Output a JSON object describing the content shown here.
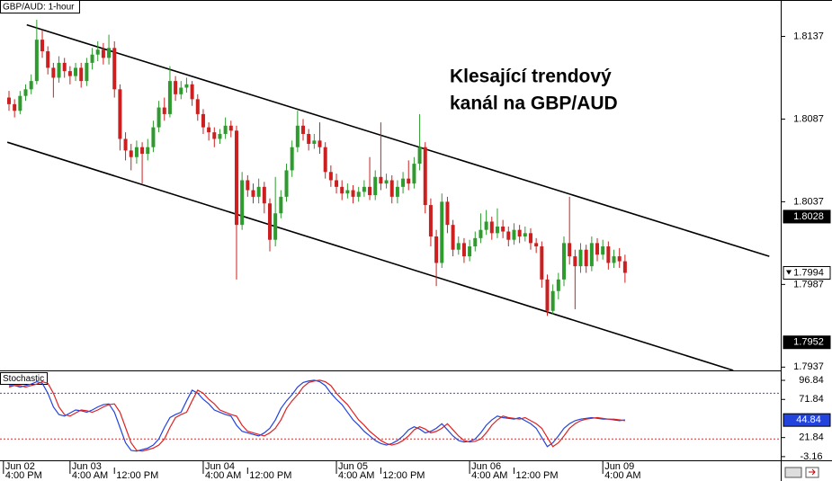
{
  "chart_data": {
    "type": "candlestick",
    "title": "GBP/AUD: 1-hour",
    "annotation": [
      "Klesající trendový",
      "kanál na GBP/AUD"
    ],
    "up_color": "#2e9b2e",
    "down_color": "#cc2020",
    "open": [
      1.81,
      1.8096,
      1.8092,
      1.8101,
      1.8105,
      1.811,
      1.8135,
      1.8128,
      1.8118,
      1.8112,
      1.8121,
      1.8116,
      1.8113,
      1.8118,
      1.811,
      1.8121,
      1.8126,
      1.8129,
      1.8124,
      1.813,
      1.8105,
      1.8075,
      1.8068,
      1.8064,
      1.807,
      1.8066,
      1.807,
      1.8082,
      1.8094,
      1.809,
      1.811,
      1.8102,
      1.8106,
      1.8108,
      1.8099,
      1.809,
      1.8082,
      1.8079,
      1.8075,
      1.8078,
      1.8083,
      1.808,
      1.8023,
      1.805,
      1.8044,
      1.804,
      1.8046,
      1.8036,
      1.8014,
      1.803,
      1.804,
      1.8056,
      1.807,
      1.8083,
      1.8078,
      1.8072,
      1.8074,
      1.807,
      1.8055,
      1.805,
      1.8046,
      1.8042,
      1.8044,
      1.804,
      1.8043,
      1.8046,
      1.8041,
      1.8052,
      1.8048,
      1.805,
      1.804,
      1.8046,
      1.8051,
      1.8048,
      1.806,
      1.807,
      1.8035,
      1.8016,
      1.8,
      1.8037,
      1.8023,
      1.8008,
      1.8012,
      1.8004,
      1.801,
      1.8015,
      1.802,
      1.8025,
      1.8018,
      1.8022,
      1.8019,
      1.8014,
      1.802,
      1.8016,
      1.8018,
      1.8012,
      1.801,
      1.799,
      1.7971,
      1.7983,
      1.799,
      1.8012,
      1.8004,
      1.7998,
      1.8008,
      1.7998,
      1.8012,
      1.8005,
      1.801,
      1.8,
      1.8004,
      1.8001
    ],
    "high": [
      1.8104,
      1.8099,
      1.8104,
      1.8108,
      1.8114,
      1.8147,
      1.8141,
      1.8131,
      1.8121,
      1.8125,
      1.8124,
      1.8119,
      1.8121,
      1.8121,
      1.8124,
      1.813,
      1.8134,
      1.8133,
      1.8138,
      1.8134,
      1.8108,
      1.8079,
      1.8072,
      1.8074,
      1.8073,
      1.8075,
      1.8086,
      1.8098,
      1.81,
      1.8119,
      1.8113,
      1.811,
      1.8112,
      1.811,
      1.8102,
      1.8093,
      1.8085,
      1.8082,
      1.8081,
      1.8088,
      1.8086,
      1.8083,
      1.8055,
      1.8053,
      1.8048,
      1.8051,
      1.8049,
      1.8039,
      1.8052,
      1.8044,
      1.806,
      1.8074,
      1.8092,
      1.8087,
      1.8081,
      1.8078,
      1.8085,
      1.8073,
      1.8059,
      1.8054,
      1.805,
      1.8048,
      1.8047,
      1.8046,
      1.805,
      1.8064,
      1.8056,
      1.8085,
      1.8054,
      1.8053,
      1.805,
      1.8055,
      1.8062,
      1.8064,
      1.809,
      1.8073,
      1.8039,
      1.802,
      1.8042,
      1.804,
      1.8026,
      1.8016,
      1.8015,
      1.8014,
      1.8019,
      1.803,
      1.8032,
      1.8028,
      1.8033,
      1.8026,
      1.8022,
      1.8024,
      1.8023,
      1.8022,
      1.8021,
      1.8015,
      1.8013,
      1.7993,
      1.7987,
      1.7994,
      1.8016,
      1.804,
      1.8008,
      1.8012,
      1.8011,
      1.8016,
      1.8015,
      1.8014,
      1.8013,
      1.8008,
      1.8009,
      1.8005
    ],
    "low": [
      1.8092,
      1.8088,
      1.809,
      1.8098,
      1.8102,
      1.8108,
      1.8124,
      1.8114,
      1.81,
      1.8109,
      1.8112,
      1.8108,
      1.811,
      1.8106,
      1.8107,
      1.8117,
      1.8122,
      1.812,
      1.812,
      1.81,
      1.8068,
      1.8062,
      1.8056,
      1.806,
      1.8048,
      1.8062,
      1.8067,
      1.8079,
      1.8086,
      1.8088,
      1.8098,
      1.8099,
      1.8103,
      1.8095,
      1.8086,
      1.8078,
      1.8074,
      1.807,
      1.8072,
      1.8075,
      1.8076,
      1.799,
      1.802,
      1.804,
      1.8036,
      1.8036,
      1.803,
      1.8007,
      1.801,
      1.8027,
      1.8037,
      1.8052,
      1.8067,
      1.8074,
      1.8068,
      1.8069,
      1.8066,
      1.8051,
      1.8046,
      1.8042,
      1.8038,
      1.8039,
      1.8036,
      1.8037,
      1.804,
      1.8038,
      1.8038,
      1.8044,
      1.8045,
      1.8036,
      1.8036,
      1.8042,
      1.8044,
      1.8045,
      1.8056,
      1.803,
      1.801,
      1.7986,
      1.7997,
      1.8018,
      1.8004,
      1.8005,
      1.8,
      1.8001,
      1.8007,
      1.8012,
      1.8017,
      1.8014,
      1.8015,
      1.8015,
      1.801,
      1.8011,
      1.8012,
      1.8013,
      1.8008,
      1.8006,
      1.7985,
      1.7968,
      1.7969,
      1.7978,
      1.7986,
      1.7999,
      1.7972,
      1.7994,
      1.7994,
      1.7995,
      1.8001,
      1.8002,
      1.7996,
      1.7997,
      1.7997,
      1.7988
    ],
    "close": [
      1.8096,
      1.8092,
      1.8101,
      1.8105,
      1.811,
      1.8135,
      1.8128,
      1.8118,
      1.8112,
      1.8121,
      1.8116,
      1.8113,
      1.8118,
      1.811,
      1.8121,
      1.8126,
      1.8129,
      1.8124,
      1.813,
      1.8105,
      1.8075,
      1.8068,
      1.8064,
      1.807,
      1.8066,
      1.807,
      1.8082,
      1.8094,
      1.809,
      1.811,
      1.8102,
      1.8106,
      1.8108,
      1.8099,
      1.809,
      1.8082,
      1.8079,
      1.8075,
      1.8078,
      1.8083,
      1.808,
      1.8023,
      1.805,
      1.8044,
      1.804,
      1.8046,
      1.8036,
      1.8014,
      1.803,
      1.804,
      1.8056,
      1.807,
      1.8083,
      1.8078,
      1.8072,
      1.8074,
      1.807,
      1.8055,
      1.805,
      1.8046,
      1.8042,
      1.8044,
      1.804,
      1.8043,
      1.8046,
      1.8041,
      1.8052,
      1.8048,
      1.805,
      1.804,
      1.8046,
      1.8051,
      1.8048,
      1.806,
      1.807,
      1.8035,
      1.8016,
      1.8,
      1.8037,
      1.8023,
      1.8008,
      1.8012,
      1.8004,
      1.801,
      1.8015,
      1.802,
      1.8025,
      1.8018,
      1.8022,
      1.8019,
      1.8014,
      1.802,
      1.8016,
      1.8018,
      1.8012,
      1.801,
      1.799,
      1.7971,
      1.7983,
      1.799,
      1.8012,
      1.8004,
      1.7998,
      1.8008,
      1.7998,
      1.8012,
      1.8005,
      1.801,
      1.8,
      1.8004,
      1.8001,
      1.7994
    ],
    "ylim": [
      1.7935,
      1.8159
    ],
    "yticks": [
      1.8137,
      1.8087,
      1.8037,
      1.7987,
      1.7937
    ],
    "price_markers": [
      1.8028,
      1.7952
    ],
    "last_price": 1.7994,
    "trendlines": [
      {
        "x": [
          3.2,
          137
        ],
        "y": [
          1.8144,
          1.8004
        ]
      },
      {
        "x": [
          -0.3,
          130.5
        ],
        "y": [
          1.8073,
          1.7935
        ]
      }
    ],
    "xticks_date": [
      {
        "value": -1,
        "label": "Jun 02"
      },
      {
        "value": 11,
        "label": "Jun 03"
      },
      {
        "value": 35,
        "label": "Jun 04"
      },
      {
        "value": 59,
        "label": "Jun 05"
      },
      {
        "value": 83,
        "label": "Jun 06"
      },
      {
        "value": 107,
        "label": "Jun 09"
      }
    ],
    "xticks_time": [
      {
        "value": -1,
        "label": "4:00 PM"
      },
      {
        "value": 11,
        "label": "4:00 AM"
      },
      {
        "value": 19,
        "label": "12:00 PM"
      },
      {
        "value": 35,
        "label": "4:00 AM"
      },
      {
        "value": 43,
        "label": "12:00 PM"
      },
      {
        "value": 59,
        "label": "4:00 AM"
      },
      {
        "value": 67,
        "label": "12:00 PM"
      },
      {
        "value": 83,
        "label": "4:00 AM"
      },
      {
        "value": 91,
        "label": "12:00 PM"
      },
      {
        "value": 107,
        "label": "4:00 AM"
      }
    ],
    "stochastic": {
      "title": "Stochastic",
      "ylim": [
        -8,
        107.5
      ],
      "yticks": [
        96.84,
        71.84,
        21.84,
        -3.16
      ],
      "levels": [
        {
          "value": 80,
          "color": "#3050d0"
        },
        {
          "value": 20,
          "color": "#d03030"
        }
      ],
      "last_value": 44.84,
      "series": [
        {
          "color": "#2244dd",
          "values": [
            90,
            90,
            88,
            90,
            92,
            95,
            93,
            80,
            62,
            52,
            50,
            54,
            58,
            57,
            55,
            58,
            62,
            65,
            66,
            55,
            35,
            15,
            5,
            4,
            6,
            8,
            12,
            20,
            35,
            48,
            52,
            55,
            70,
            84,
            80,
            72,
            66,
            58,
            55,
            52,
            50,
            38,
            30,
            28,
            26,
            24,
            28,
            34,
            45,
            60,
            70,
            78,
            88,
            94,
            96,
            97,
            95,
            90,
            80,
            72,
            65,
            55,
            45,
            38,
            30,
            24,
            18,
            14,
            12,
            14,
            18,
            24,
            32,
            36,
            33,
            28,
            30,
            34,
            40,
            32,
            24,
            18,
            16,
            17,
            20,
            28,
            38,
            45,
            50,
            48,
            47,
            46,
            48,
            44,
            40,
            34,
            22,
            10,
            15,
            24,
            34,
            40,
            44,
            46,
            47,
            48,
            47,
            46,
            46,
            45,
            44,
            45
          ]
        },
        {
          "color": "#dd2222",
          "values": [
            88,
            90,
            90,
            88,
            90,
            92,
            95,
            93,
            80,
            62,
            52,
            50,
            54,
            58,
            57,
            55,
            58,
            62,
            65,
            66,
            55,
            35,
            15,
            5,
            4,
            6,
            8,
            12,
            20,
            35,
            48,
            52,
            55,
            70,
            84,
            80,
            72,
            66,
            58,
            55,
            52,
            50,
            38,
            30,
            28,
            26,
            24,
            28,
            34,
            45,
            60,
            70,
            78,
            88,
            94,
            96,
            97,
            95,
            90,
            80,
            72,
            65,
            55,
            45,
            38,
            30,
            24,
            18,
            14,
            12,
            14,
            18,
            24,
            32,
            36,
            33,
            28,
            30,
            34,
            40,
            32,
            24,
            18,
            16,
            17,
            20,
            28,
            38,
            45,
            50,
            48,
            47,
            46,
            48,
            44,
            40,
            34,
            22,
            10,
            15,
            24,
            34,
            40,
            44,
            46,
            47,
            48,
            47,
            46,
            46,
            45,
            44
          ]
        }
      ]
    }
  }
}
